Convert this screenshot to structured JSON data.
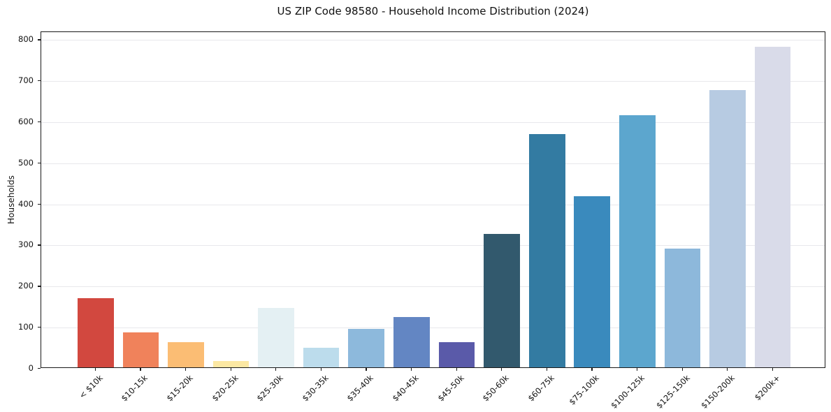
{
  "chart_data": {
    "type": "bar",
    "title": "US ZIP Code 98580 - Household Income Distribution (2024)",
    "xlabel": "",
    "ylabel": "Households",
    "categories": [
      "< $10k",
      "$10-15k",
      "$15-20k",
      "$20-25k",
      "$25-30k",
      "$30-35k",
      "$35-40k",
      "$40-45k",
      "$45-50k",
      "$50-60k",
      "$60-75k",
      "$75-100k",
      "$100-125k",
      "$125-150k",
      "$150-200k",
      "$200k+"
    ],
    "values": [
      168,
      85,
      62,
      15,
      145,
      48,
      93,
      123,
      62,
      325,
      568,
      417,
      614,
      289,
      675,
      780
    ],
    "bar_colors": [
      "#d2483f",
      "#f0825b",
      "#fbbd74",
      "#fce8a3",
      "#e4f0f3",
      "#bcdcec",
      "#8db9dc",
      "#6386c3",
      "#5a5aa9",
      "#32596d",
      "#337ba2",
      "#3a8abd",
      "#5ca6ce",
      "#8db8db",
      "#b7cbe2",
      "#d9dbe9"
    ],
    "yticks": [
      0,
      100,
      200,
      300,
      400,
      500,
      600,
      700,
      800
    ],
    "ylim": [
      0,
      819
    ],
    "grid": "horizontal",
    "legend": "none",
    "background_color": "#ffffff",
    "axis_color": "#1a1a1a",
    "grid_color": "#e8e8ec"
  }
}
